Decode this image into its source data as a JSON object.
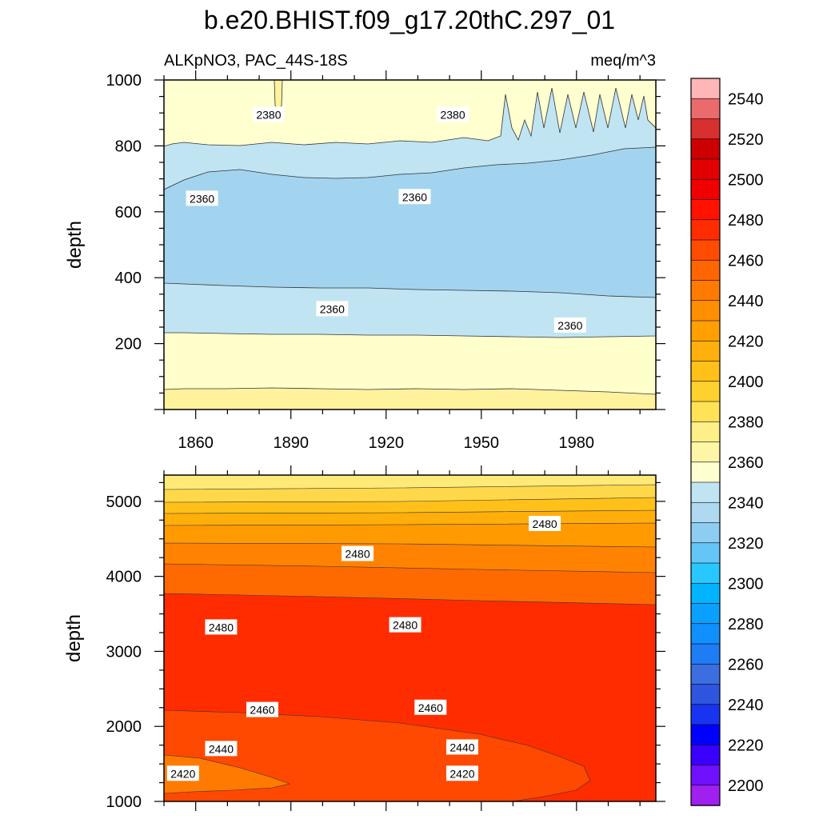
{
  "title": "b.e20.BHIST.f09_g17.20thC.297_01",
  "left_subtitle": "ALKpNO3, PAC_44S-18S",
  "right_subtitle": "meq/m^3",
  "chart_data": [
    {
      "type": "contour",
      "panel": "upper",
      "xlabel": "",
      "ylabel": "depth",
      "xlim": [
        1850,
        2005
      ],
      "ylim": [
        1000,
        0
      ],
      "xticks": [
        1860,
        1890,
        1920,
        1950,
        1980
      ],
      "yticks": [
        200,
        400,
        600,
        800,
        1000
      ],
      "contour_labels": [
        {
          "text": "2360",
          "x": 1903,
          "y": 305
        },
        {
          "text": "2360",
          "x": 1978,
          "y": 255
        },
        {
          "text": "2360",
          "x": 1862,
          "y": 640
        },
        {
          "text": "2360",
          "x": 1929,
          "y": 645
        },
        {
          "text": "2380",
          "x": 1883,
          "y": 895
        },
        {
          "text": "2380",
          "x": 1941,
          "y": 895
        }
      ]
    },
    {
      "type": "contour",
      "panel": "lower",
      "xlabel": "",
      "ylabel": "depth",
      "xlim": [
        1850,
        2005
      ],
      "ylim": [
        5350,
        1000
      ],
      "xticks": [
        1860,
        1890,
        1920,
        1950,
        1980
      ],
      "yticks": [
        1000,
        2000,
        3000,
        4000,
        5000
      ],
      "contour_labels": [
        {
          "text": "2420",
          "x": 1856,
          "y": 1370
        },
        {
          "text": "2420",
          "x": 1944,
          "y": 1370
        },
        {
          "text": "2440",
          "x": 1868,
          "y": 1700
        },
        {
          "text": "2440",
          "x": 1944,
          "y": 1720
        },
        {
          "text": "2460",
          "x": 1881,
          "y": 2220
        },
        {
          "text": "2460",
          "x": 1934,
          "y": 2250
        },
        {
          "text": "2480",
          "x": 1868,
          "y": 3320
        },
        {
          "text": "2480",
          "x": 1926,
          "y": 3350
        },
        {
          "text": "2480",
          "x": 1911,
          "y": 4300
        },
        {
          "text": "2480",
          "x": 1970,
          "y": 4700
        }
      ]
    }
  ],
  "colorbar": {
    "levels": [
      "2200",
      "2220",
      "2240",
      "2260",
      "2280",
      "2300",
      "2320",
      "2340",
      "2360",
      "2380",
      "2400",
      "2420",
      "2440",
      "2460",
      "2480",
      "2500",
      "2520",
      "2540"
    ],
    "colors": [
      "#a020f0",
      "#6f10ff",
      "#3a00ff",
      "#0000ff",
      "#1834f0",
      "#2e54e0",
      "#3c6ee0",
      "#1e7cf5",
      "#1090ff",
      "#0aa0ff",
      "#00b4ff",
      "#28c8ff",
      "#64c6f6",
      "#8ecdf2",
      "#aed9f0",
      "#c0e4f2",
      "#ffffd0",
      "#fff5a6",
      "#ffef88",
      "#ffe256",
      "#ffd12e",
      "#ffc01a",
      "#ffb00c",
      "#ffa000",
      "#ff8f00",
      "#ff7a00",
      "#ff6500",
      "#ff4c00",
      "#ff2c00",
      "#ff1200",
      "#f00000",
      "#e00000",
      "#cc0000",
      "#d8302e",
      "#ea6b6b",
      "#ffb6b6"
    ]
  },
  "colors": {
    "upper_surface": "#ffffd0",
    "upper_mid": "#c0e4f2",
    "upper_core": "#a2d4ef",
    "upper_deep1": "#ffffcc",
    "upper_deep2": "#fff29c",
    "lower_bands": [
      "#ffea78",
      "#ffd84a",
      "#ffc01a",
      "#ffae0a",
      "#ff9a00",
      "#ff8300",
      "#ff6a00",
      "#ff2c00",
      "#ff4800",
      "#ff7a00"
    ]
  }
}
